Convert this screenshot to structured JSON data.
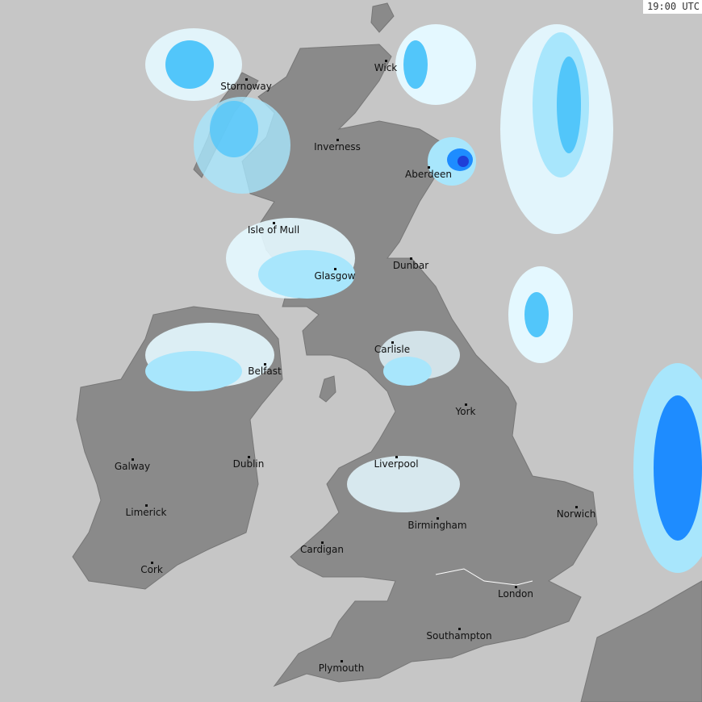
{
  "timestamp": "19:00 UTC",
  "colors": {
    "sea": "#c6c6c6",
    "land": "#8a8a8a",
    "rain_light": "#e4f8ff",
    "rain_mid": "#a8e6fc",
    "rain_heavy": "#52c6fa",
    "rain_very_heavy": "#1e8cff",
    "rain_intense": "#1f3fd8"
  },
  "cities": [
    {
      "name": "Stornoway"
    },
    {
      "name": "Wick"
    },
    {
      "name": "Inverness"
    },
    {
      "name": "Aberdeen"
    },
    {
      "name": "Isle of Mull"
    },
    {
      "name": "Dunbar"
    },
    {
      "name": "Glasgow"
    },
    {
      "name": "Carlisle"
    },
    {
      "name": "Belfast"
    },
    {
      "name": "York"
    },
    {
      "name": "Galway"
    },
    {
      "name": "Dublin"
    },
    {
      "name": "Liverpool"
    },
    {
      "name": "Limerick"
    },
    {
      "name": "Norwich"
    },
    {
      "name": "Birmingham"
    },
    {
      "name": "Cardigan"
    },
    {
      "name": "Cork"
    },
    {
      "name": "London"
    },
    {
      "name": "Southampton"
    },
    {
      "name": "Plymouth"
    }
  ]
}
